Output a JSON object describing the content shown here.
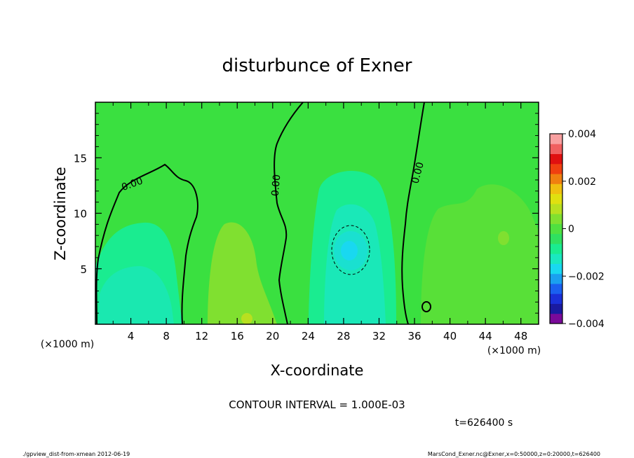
{
  "chart_data": {
    "type": "heatmap",
    "title": "disturbunce of Exner",
    "xlabel": "X-coordinate",
    "ylabel": "Z-coordinate",
    "x_unit": "(×1000 m)",
    "y_unit": "(×1000 m)",
    "xlim": [
      0,
      50
    ],
    "ylim": [
      0,
      20
    ],
    "x_ticks": [
      "4",
      "8",
      "12",
      "16",
      "20",
      "24",
      "28",
      "32",
      "36",
      "40",
      "44",
      "48"
    ],
    "y_ticks": [
      "5",
      "10",
      "15"
    ],
    "colorbar": {
      "min": -0.004,
      "max": 0.004,
      "tick_labels": [
        "0.004",
        "0.002",
        "0",
        "−0.002",
        "−0.004"
      ],
      "colors": [
        "#7a0a9a",
        "#1a1aa0",
        "#1a30d8",
        "#1a60f0",
        "#1aa0f0",
        "#19d8f0",
        "#1ae8c0",
        "#1aec90",
        "#30e060",
        "#50e040",
        "#80e030",
        "#b8e020",
        "#e0e010",
        "#f0c010",
        "#f08010",
        "#f04010",
        "#e01010",
        "#f06060",
        "#f8a0a0"
      ]
    },
    "annotations": {
      "contour_interval": "CONTOUR INTERVAL = 1.000E-03",
      "time": "t=626400 s",
      "footer_left": "./gpview_dist-from-xmean  2012-06-19",
      "footer_right": "MarsCond_Exner.nc@Exner,x=0:50000,z=0:20000,t=626400",
      "contour_labels": [
        "0.00",
        "0.00",
        "0.00"
      ]
    }
  }
}
